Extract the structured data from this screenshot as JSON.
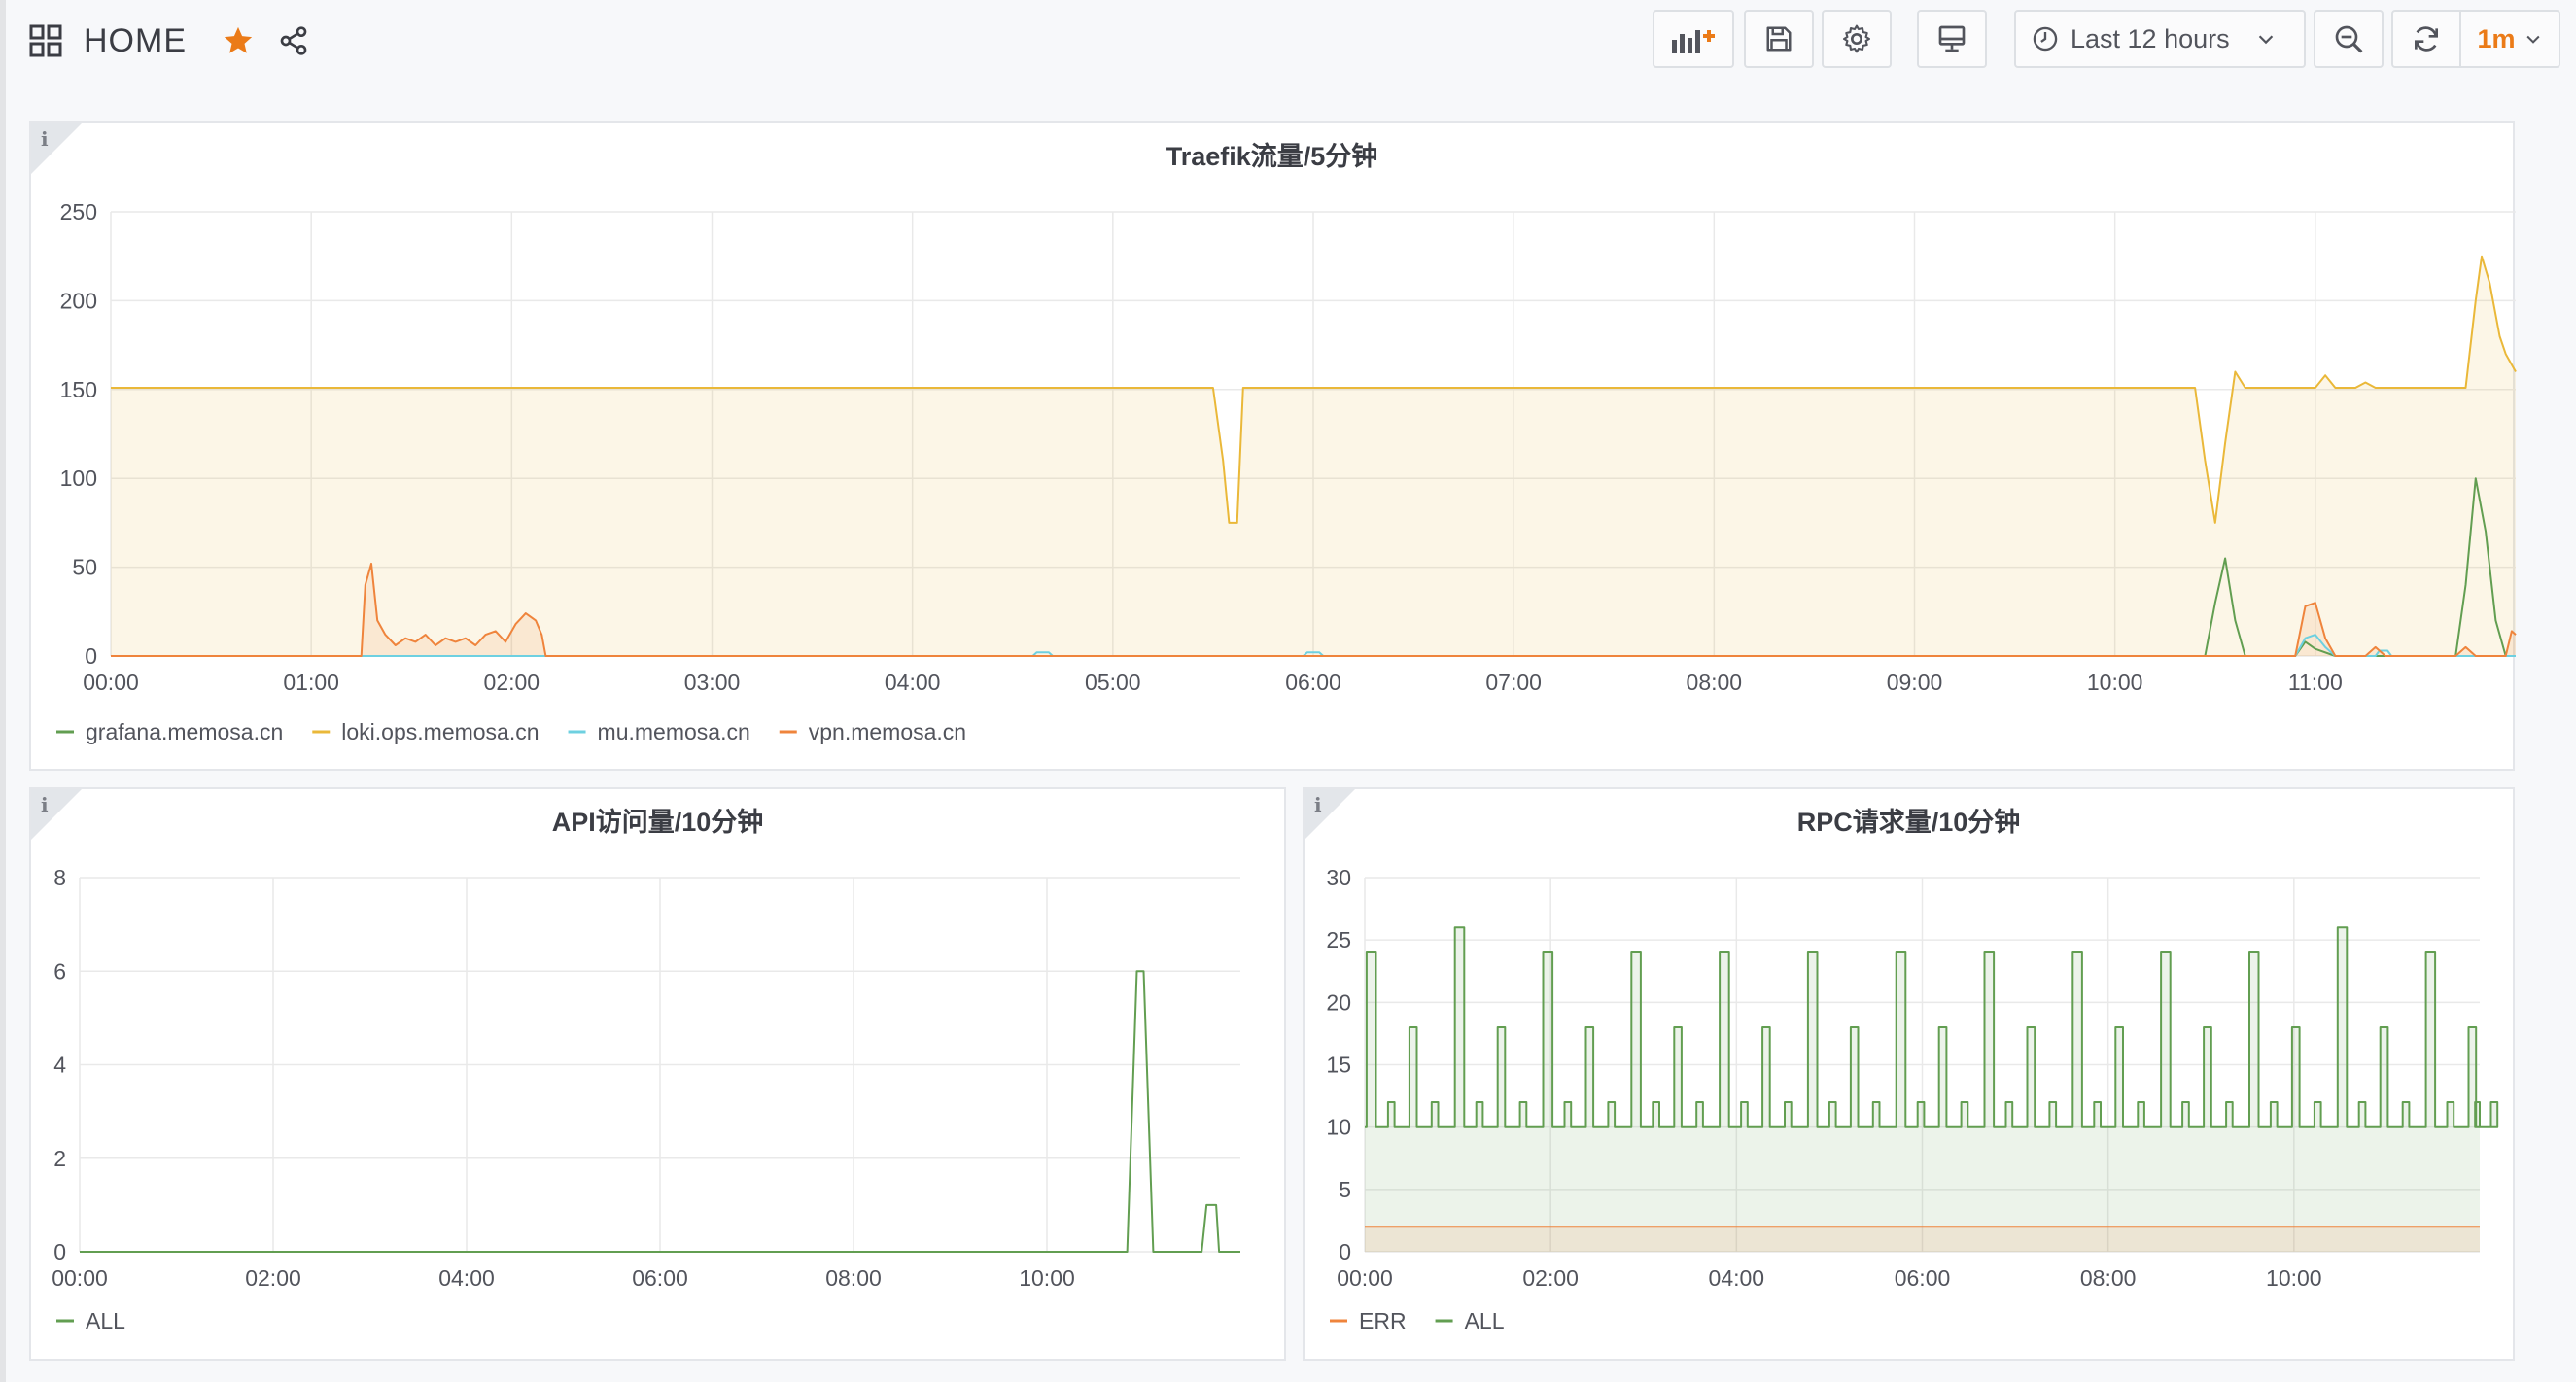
{
  "header": {
    "dashboard_title": "HOME",
    "time_range": "Last 12 hours",
    "refresh_interval": "1m",
    "accent": "#eb7b18"
  },
  "panels": [
    {
      "id": "traefik",
      "title": "Traefik流量/5分钟",
      "chart_data": {
        "type": "area",
        "title": "Traefik流量/5分钟",
        "x": [
          "00:00",
          "01:00",
          "02:00",
          "03:00",
          "04:00",
          "05:00",
          "06:00",
          "07:00",
          "08:00",
          "09:00",
          "10:00",
          "11:00"
        ],
        "ylim": [
          0,
          250
        ],
        "yticks": [
          "0",
          "50",
          "100",
          "150",
          "200",
          "250"
        ],
        "grid": true,
        "legend": "bottom-left",
        "series": [
          {
            "name": "grafana.memosa.cn",
            "color": "#629e51",
            "fill": false,
            "points": [
              [
                0,
                0
              ],
              [
                10.45,
                0
              ],
              [
                10.5,
                30
              ],
              [
                10.55,
                55
              ],
              [
                10.6,
                20
              ],
              [
                10.65,
                0
              ],
              [
                10.9,
                0
              ],
              [
                10.95,
                8
              ],
              [
                11.0,
                4
              ],
              [
                11.1,
                0
              ],
              [
                11.7,
                0
              ],
              [
                11.75,
                40
              ],
              [
                11.8,
                100
              ],
              [
                11.85,
                70
              ],
              [
                11.9,
                20
              ],
              [
                11.95,
                0
              ],
              [
                12,
                0
              ]
            ]
          },
          {
            "name": "loki.ops.memosa.cn",
            "color": "#eab839",
            "fill": true,
            "points": [
              [
                0,
                151
              ],
              [
                5.5,
                151
              ],
              [
                5.55,
                110
              ],
              [
                5.58,
                75
              ],
              [
                5.62,
                75
              ],
              [
                5.65,
                151
              ],
              [
                10.4,
                151
              ],
              [
                10.45,
                110
              ],
              [
                10.5,
                75
              ],
              [
                10.55,
                120
              ],
              [
                10.6,
                160
              ],
              [
                10.65,
                151
              ],
              [
                11.0,
                151
              ],
              [
                11.05,
                158
              ],
              [
                11.1,
                151
              ],
              [
                11.2,
                151
              ],
              [
                11.25,
                154
              ],
              [
                11.3,
                151
              ],
              [
                11.75,
                151
              ],
              [
                11.8,
                200
              ],
              [
                11.83,
                225
              ],
              [
                11.87,
                210
              ],
              [
                11.92,
                180
              ],
              [
                11.95,
                170
              ],
              [
                12,
                160
              ]
            ]
          },
          {
            "name": "mu.memosa.cn",
            "color": "#6ed0e0",
            "fill": false,
            "points": [
              [
                0,
                0
              ],
              [
                4.6,
                0
              ],
              [
                4.62,
                2
              ],
              [
                4.68,
                2
              ],
              [
                4.7,
                0
              ],
              [
                5.95,
                0
              ],
              [
                5.97,
                2
              ],
              [
                6.03,
                2
              ],
              [
                6.05,
                0
              ],
              [
                10.9,
                0
              ],
              [
                10.95,
                10
              ],
              [
                11.0,
                12
              ],
              [
                11.05,
                5
              ],
              [
                11.1,
                0
              ],
              [
                11.3,
                0
              ],
              [
                11.32,
                3
              ],
              [
                11.36,
                3
              ],
              [
                11.38,
                0
              ],
              [
                12,
                0
              ]
            ]
          },
          {
            "name": "vpn.memosa.cn",
            "color": "#ef843c",
            "fill": true,
            "points": [
              [
                0,
                0
              ],
              [
                1.25,
                0
              ],
              [
                1.27,
                40
              ],
              [
                1.3,
                52
              ],
              [
                1.33,
                20
              ],
              [
                1.37,
                12
              ],
              [
                1.42,
                6
              ],
              [
                1.47,
                10
              ],
              [
                1.52,
                8
              ],
              [
                1.57,
                12
              ],
              [
                1.62,
                6
              ],
              [
                1.67,
                10
              ],
              [
                1.72,
                8
              ],
              [
                1.77,
                10
              ],
              [
                1.82,
                6
              ],
              [
                1.87,
                12
              ],
              [
                1.92,
                14
              ],
              [
                1.97,
                8
              ],
              [
                2.02,
                18
              ],
              [
                2.07,
                24
              ],
              [
                2.12,
                20
              ],
              [
                2.15,
                12
              ],
              [
                2.17,
                0
              ],
              [
                10.9,
                0
              ],
              [
                10.95,
                28
              ],
              [
                11.0,
                30
              ],
              [
                11.05,
                10
              ],
              [
                11.1,
                0
              ],
              [
                11.25,
                0
              ],
              [
                11.3,
                5
              ],
              [
                11.35,
                0
              ],
              [
                11.7,
                0
              ],
              [
                11.75,
                5
              ],
              [
                11.8,
                0
              ],
              [
                11.95,
                0
              ],
              [
                11.98,
                14
              ],
              [
                12,
                12
              ]
            ]
          }
        ]
      }
    },
    {
      "id": "api",
      "title": "API访问量/10分钟",
      "chart_data": {
        "type": "line",
        "title": "API访问量/10分钟",
        "x": [
          "00:00",
          "02:00",
          "04:00",
          "06:00",
          "08:00",
          "10:00"
        ],
        "ylim": [
          0,
          8
        ],
        "yticks": [
          "0",
          "2",
          "4",
          "6",
          "8"
        ],
        "grid": true,
        "legend": "bottom-left",
        "series": [
          {
            "name": "ALL",
            "color": "#629e51",
            "fill": false,
            "points": [
              [
                0,
                0
              ],
              [
                10.83,
                0
              ],
              [
                10.93,
                6
              ],
              [
                11.0,
                6
              ],
              [
                11.1,
                0
              ],
              [
                11.6,
                0
              ],
              [
                11.65,
                1
              ],
              [
                11.75,
                1
              ],
              [
                11.78,
                0
              ],
              [
                12,
                0
              ]
            ]
          }
        ]
      }
    },
    {
      "id": "rpc",
      "title": "RPC请求量/10分钟",
      "chart_data": {
        "type": "area",
        "title": "RPC请求量/10分钟",
        "x": [
          "00:00",
          "02:00",
          "04:00",
          "06:00",
          "08:00",
          "10:00"
        ],
        "ylim": [
          0,
          30
        ],
        "yticks": [
          "0",
          "5",
          "10",
          "15",
          "20",
          "25",
          "30"
        ],
        "grid": true,
        "legend": "bottom-left",
        "peaks": [
          24,
          26,
          24,
          24,
          24,
          24,
          24,
          24,
          24,
          24,
          24,
          26,
          24
        ],
        "mids": [
          18,
          18,
          18,
          18,
          18,
          18,
          18,
          18,
          18,
          18,
          18,
          18,
          18
        ],
        "baseline": 10,
        "series": [
          {
            "name": "ERR",
            "color": "#ef843c",
            "value": 2
          },
          {
            "name": "ALL",
            "color": "#629e51"
          }
        ]
      }
    }
  ]
}
